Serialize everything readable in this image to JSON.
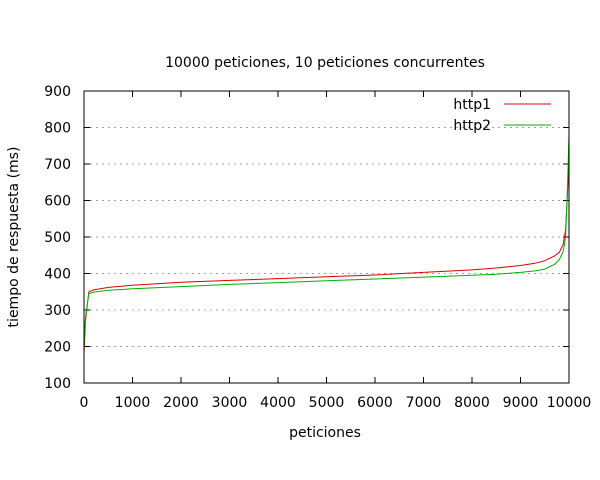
{
  "chart_data": {
    "type": "line",
    "title": "10000 peticiones, 10 peticiones concurrentes",
    "xlabel": "peticiones",
    "ylabel": "tiempo de respuesta (ms)",
    "xlim": [
      0,
      10000
    ],
    "ylim": [
      100,
      900
    ],
    "x_ticks": [
      "0",
      "1000",
      "2000",
      "3000",
      "4000",
      "5000",
      "6000",
      "7000",
      "8000",
      "9000",
      "10000"
    ],
    "y_ticks": [
      "100",
      "200",
      "300",
      "400",
      "500",
      "600",
      "700",
      "800",
      "900"
    ],
    "grid": true,
    "legend_position": "top-right",
    "series": [
      {
        "name": "http1",
        "color": "#e00000",
        "points": [
          [
            0,
            180
          ],
          [
            30,
            270
          ],
          [
            100,
            350
          ],
          [
            200,
            355
          ],
          [
            500,
            362
          ],
          [
            1000,
            368
          ],
          [
            2000,
            376
          ],
          [
            3000,
            381
          ],
          [
            4000,
            386
          ],
          [
            5000,
            391
          ],
          [
            6000,
            396
          ],
          [
            7000,
            403
          ],
          [
            8000,
            410
          ],
          [
            8500,
            415
          ],
          [
            9000,
            422
          ],
          [
            9300,
            428
          ],
          [
            9500,
            435
          ],
          [
            9700,
            448
          ],
          [
            9800,
            458
          ],
          [
            9880,
            480
          ],
          [
            9930,
            520
          ],
          [
            9970,
            620
          ],
          [
            10000,
            720
          ]
        ]
      },
      {
        "name": "http2",
        "color": "#00b000",
        "points": [
          [
            0,
            200
          ],
          [
            30,
            280
          ],
          [
            100,
            345
          ],
          [
            200,
            349
          ],
          [
            500,
            354
          ],
          [
            1000,
            358
          ],
          [
            2000,
            364
          ],
          [
            3000,
            370
          ],
          [
            4000,
            375
          ],
          [
            5000,
            380
          ],
          [
            6000,
            385
          ],
          [
            7000,
            390
          ],
          [
            8000,
            395
          ],
          [
            8500,
            398
          ],
          [
            9000,
            403
          ],
          [
            9300,
            407
          ],
          [
            9500,
            412
          ],
          [
            9700,
            425
          ],
          [
            9800,
            438
          ],
          [
            9880,
            460
          ],
          [
            9930,
            500
          ],
          [
            9970,
            640
          ],
          [
            10000,
            780
          ]
        ]
      }
    ]
  }
}
